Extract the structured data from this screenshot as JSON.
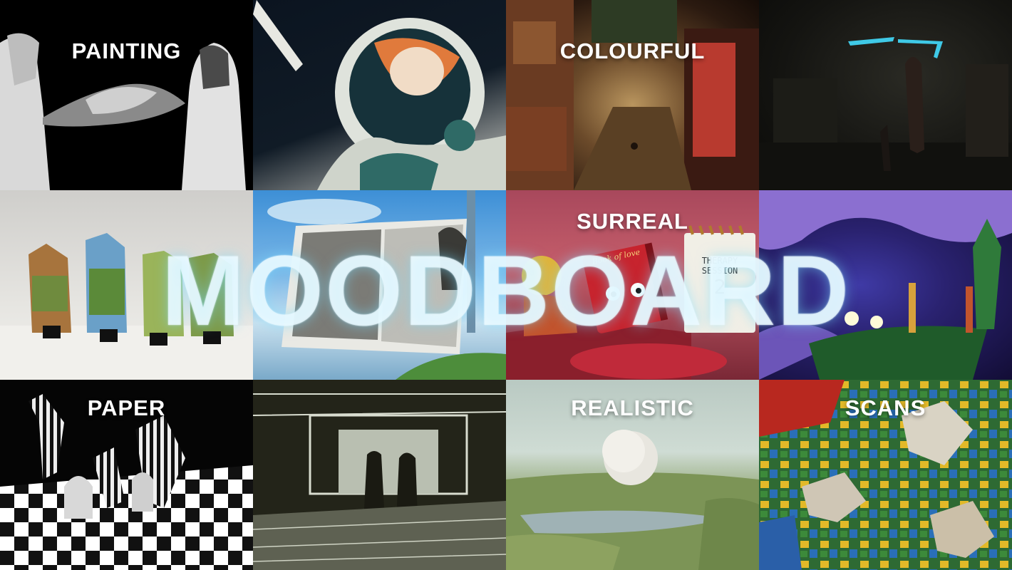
{
  "title": "MOODBOARD",
  "tiles": [
    {
      "label": "PAINTING"
    },
    {
      "label": ""
    },
    {
      "label": "COLOURFUL"
    },
    {
      "label": ""
    },
    {
      "label": ""
    },
    {
      "label": ""
    },
    {
      "label": "SURREAL"
    },
    {
      "label": ""
    },
    {
      "label": "PAPER"
    },
    {
      "label": ""
    },
    {
      "label": "REALISTIC"
    },
    {
      "label": "SCANS"
    }
  ],
  "artwork_text": {
    "book": "Book of love",
    "notepad_line1": "THERAPY",
    "notepad_line2": "SESSION",
    "notepad_number": "2"
  }
}
